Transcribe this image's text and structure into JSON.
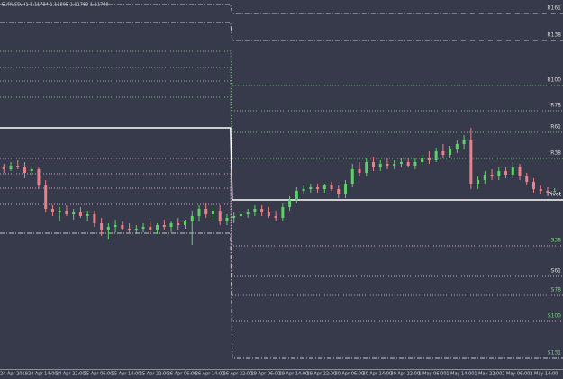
{
  "chart_data": {
    "type": "candlestick",
    "title": "EURUSD,H1  1.11784 1.11805 1.11783 1.11788",
    "categories": [
      null,
      "24 Apr 2019",
      null,
      null,
      null,
      "24 Apr 14:00",
      null,
      null,
      null,
      "24 Apr 22:00",
      null,
      null,
      null,
      "25 Apr 06:00",
      null,
      null,
      null,
      "25 Apr 14:00",
      null,
      null,
      null,
      "25 Apr 22:00",
      null,
      null,
      null,
      "26 Apr 06:00",
      null,
      null,
      null,
      "26 Apr 14:00",
      null,
      null,
      null,
      "26 Apr 22:00",
      null,
      null,
      null,
      "29 Apr 06:00",
      null,
      null,
      null,
      "29 Apr 14:00",
      null,
      null,
      null,
      "29 Apr 22:00",
      null,
      null,
      null,
      "30 Apr 06:00",
      null,
      null,
      null,
      "30 Apr 14:00",
      null,
      null,
      null,
      "30 Apr 22:00",
      null,
      null,
      null,
      "1 May 06:00",
      null,
      null,
      null,
      "1 May 14:00",
      null,
      null,
      null,
      "1 May 22:00",
      null,
      null,
      null,
      "2 May 06:00",
      null,
      null,
      null,
      "2 May 14:00",
      null,
      null
    ],
    "open": [
      1.1192,
      1.1191,
      1.1193,
      1.1192,
      1.119,
      1.1191,
      1.1182,
      1.1169,
      1.1167,
      1.1168,
      1.1166,
      1.1167,
      1.1165,
      1.1166,
      1.1161,
      1.1157,
      1.1159,
      1.116,
      1.1158,
      1.1157,
      1.1158,
      1.1159,
      1.1157,
      1.116,
      1.1159,
      1.1161,
      1.116,
      1.1162,
      1.1165,
      1.1169,
      1.1166,
      1.1168,
      1.1162,
      1.1164,
      1.1165,
      1.1166,
      1.1167,
      1.1169,
      1.1167,
      1.1165,
      1.1164,
      1.117,
      1.1174,
      1.1179,
      1.118,
      1.1181,
      1.118,
      1.1182,
      1.118,
      1.1177,
      1.1183,
      1.1191,
      1.1189,
      1.1195,
      1.1192,
      1.1194,
      1.1193,
      1.1194,
      1.1195,
      1.1193,
      1.1195,
      1.1197,
      1.1196,
      1.1201,
      1.1199,
      1.1202,
      1.1205,
      1.1207,
      1.1183,
      1.1185,
      1.1188,
      1.1187,
      1.119,
      1.1188,
      1.1192,
      1.1187,
      1.1184,
      1.118,
      1.1179,
      1.11784
    ],
    "high": [
      1.1194,
      1.1195,
      1.1196,
      1.1195,
      1.1193,
      1.1192,
      1.1185,
      1.1171,
      1.117,
      1.1171,
      1.1169,
      1.117,
      1.1168,
      1.1168,
      1.1164,
      1.1161,
      1.1163,
      1.1162,
      1.1161,
      1.116,
      1.1161,
      1.1162,
      1.1161,
      1.1163,
      1.1162,
      1.1164,
      1.1163,
      1.1168,
      1.1171,
      1.1172,
      1.117,
      1.1171,
      1.1166,
      1.1167,
      1.1168,
      1.1169,
      1.1171,
      1.1171,
      1.117,
      1.1168,
      1.1172,
      1.1176,
      1.1181,
      1.1182,
      1.1183,
      1.1183,
      1.1183,
      1.1184,
      1.1182,
      1.1185,
      1.1194,
      1.1195,
      1.1197,
      1.1198,
      1.1196,
      1.1197,
      1.1196,
      1.1197,
      1.1197,
      1.1197,
      1.1199,
      1.1201,
      1.1203,
      1.1205,
      1.1204,
      1.1207,
      1.121,
      1.1214,
      1.1187,
      1.119,
      1.1191,
      1.1192,
      1.1192,
      1.1195,
      1.1194,
      1.1189,
      1.1186,
      1.1182,
      1.1181,
      1.11805
    ],
    "low": [
      1.1189,
      1.119,
      1.1191,
      1.1186,
      1.1187,
      1.118,
      1.1167,
      1.1165,
      1.1162,
      1.1165,
      1.1163,
      1.1164,
      1.1162,
      1.1159,
      1.1154,
      1.1152,
      1.1156,
      1.1157,
      1.1156,
      1.1155,
      1.1156,
      1.1156,
      1.1155,
      1.1157,
      1.1156,
      1.1157,
      1.1158,
      1.1149,
      1.1162,
      1.1164,
      1.1163,
      1.116,
      1.116,
      1.1161,
      1.1163,
      1.1164,
      1.1165,
      1.1165,
      1.1164,
      1.1162,
      1.1162,
      1.1168,
      1.1172,
      1.1177,
      1.1178,
      1.1178,
      1.1178,
      1.1179,
      1.1175,
      1.1175,
      1.1181,
      1.1187,
      1.1187,
      1.119,
      1.119,
      1.1191,
      1.1191,
      1.1192,
      1.1192,
      1.1191,
      1.1193,
      1.1194,
      1.1195,
      1.1197,
      1.1197,
      1.12,
      1.1202,
      1.118,
      1.118,
      1.1183,
      1.1185,
      1.1185,
      1.1186,
      1.1186,
      1.1185,
      1.1182,
      1.1178,
      1.1177,
      1.1176,
      1.11783
    ],
    "close": [
      1.1191,
      1.1193,
      1.1192,
      1.1189,
      1.1191,
      1.1182,
      1.1169,
      1.1167,
      1.1168,
      1.1166,
      1.1167,
      1.1165,
      1.1166,
      1.1161,
      1.1157,
      1.1159,
      1.116,
      1.1158,
      1.1157,
      1.1158,
      1.1159,
      1.1157,
      1.116,
      1.1159,
      1.1161,
      1.116,
      1.1162,
      1.1165,
      1.1169,
      1.1166,
      1.1168,
      1.1162,
      1.1164,
      1.1165,
      1.1166,
      1.1167,
      1.1169,
      1.1167,
      1.1165,
      1.1164,
      1.117,
      1.1174,
      1.1179,
      1.118,
      1.1181,
      1.118,
      1.1182,
      1.118,
      1.1177,
      1.1183,
      1.1191,
      1.1189,
      1.1195,
      1.1192,
      1.1194,
      1.1193,
      1.1194,
      1.1195,
      1.1193,
      1.1195,
      1.1197,
      1.1196,
      1.1201,
      1.1199,
      1.1202,
      1.1205,
      1.1207,
      1.1183,
      1.1185,
      1.1188,
      1.1187,
      1.119,
      1.1188,
      1.1192,
      1.1187,
      1.1184,
      1.118,
      1.1179,
      1.1178,
      1.11788
    ],
    "up_color": "#5fcf68",
    "down_color": "#ee7f88",
    "ylim": [
      1.108,
      1.1285
    ],
    "period_start": 33,
    "levels": [
      {
        "name": "R161",
        "color": "#c8c8c8",
        "label_color": "#d8d8d8",
        "dash": "dashdot",
        "values": [
          1.12825,
          1.12775
        ]
      },
      {
        "name": "R138",
        "color": "#c8c8c8",
        "label_color": "#d8d8d8",
        "dash": "dashdot",
        "values": [
          1.12725,
          1.12625
        ]
      },
      {
        "name": "R100",
        "color": "#7fbf7f",
        "label_color": "#d8d8d8",
        "dash": "dot",
        "values": [
          1.12565,
          1.12375
        ]
      },
      {
        "name": "R78",
        "color": "#7fbf7f",
        "label_color": "#d8d8d8",
        "dash": "dot",
        "values": [
          1.12475,
          1.12235
        ]
      },
      {
        "name": "R61",
        "color": "#7fbf7f",
        "label_color": "#d8d8d8",
        "dash": "dot",
        "values": [
          1.124,
          1.12115
        ]
      },
      {
        "name": "R38",
        "color": "#7fbf7f",
        "label_color": "#d8d8d8",
        "dash": "dot",
        "values": [
          1.1231,
          1.1197
        ]
      },
      {
        "name": "Pivot",
        "color": "#ffffff",
        "label_color": "#ffffff",
        "dash": "solid",
        "values": [
          1.1214,
          1.1174
        ]
      },
      {
        "name": "S38",
        "color": "#c9a3bf",
        "label_color": "#7fd07f",
        "dash": "dot",
        "values": [
          1.1197,
          1.11485
        ]
      },
      {
        "name": "S61",
        "color": "#c9a3bf",
        "label_color": "#d8d8d8",
        "dash": "dot",
        "values": [
          1.11885,
          1.11315
        ]
      },
      {
        "name": "S78",
        "color": "#c9a3bf",
        "label_color": "#7fd07f",
        "dash": "dot",
        "values": [
          1.11805,
          1.1121
        ]
      },
      {
        "name": "S100",
        "color": "#c9a3bf",
        "label_color": "#7fd07f",
        "dash": "dot",
        "values": [
          1.11715,
          1.11065
        ]
      },
      {
        "name": "S131",
        "color": "#c8c8c8",
        "label_color": "#7fd07f",
        "dash": "dashdot",
        "values": [
          1.11555,
          1.1086
        ]
      }
    ]
  }
}
